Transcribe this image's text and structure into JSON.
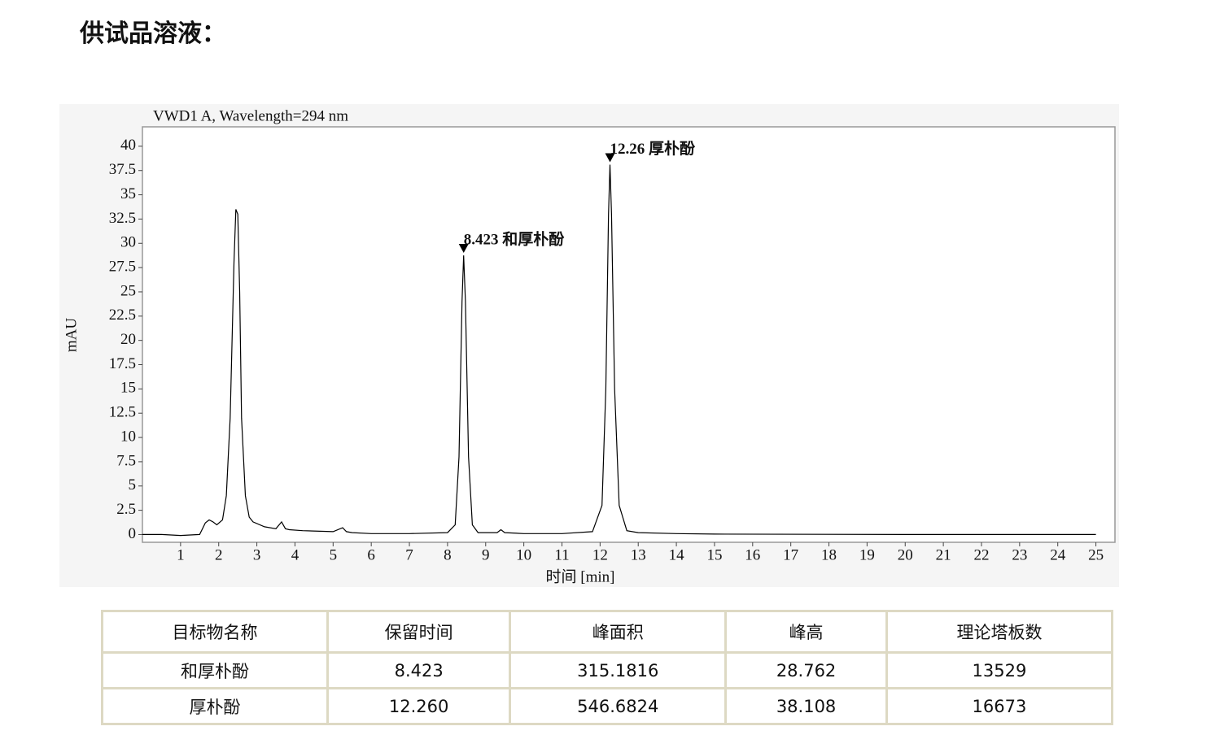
{
  "heading": "供试品溶液：",
  "chart_data": {
    "type": "line",
    "title": "VWD1 A, Wavelength=294 nm",
    "ylabel": "mAU",
    "xlabel": "时间 [min]",
    "xlim": [
      0,
      25.5
    ],
    "ylim": [
      -0.8,
      42
    ],
    "xticks": [
      1,
      2,
      3,
      4,
      5,
      6,
      7,
      8,
      9,
      10,
      11,
      12,
      13,
      14,
      15,
      16,
      17,
      18,
      19,
      20,
      21,
      22,
      23,
      24,
      25
    ],
    "yticks": [
      0,
      2.5,
      5,
      7.5,
      10,
      12.5,
      15,
      17.5,
      20,
      22.5,
      25,
      27.5,
      30,
      32.5,
      35,
      37.5,
      40
    ],
    "x": [
      0,
      0.5,
      1,
      1.5,
      1.65,
      1.75,
      1.85,
      1.95,
      2.1,
      2.2,
      2.3,
      2.4,
      2.45,
      2.5,
      2.55,
      2.6,
      2.7,
      2.8,
      2.9,
      3.2,
      3.5,
      3.65,
      3.75,
      3.85,
      4.2,
      5,
      5.25,
      5.35,
      5.5,
      6,
      7,
      8,
      8.2,
      8.3,
      8.38,
      8.423,
      8.47,
      8.55,
      8.65,
      8.8,
      9.3,
      9.4,
      9.5,
      10,
      11,
      11.8,
      12.05,
      12.15,
      12.22,
      12.26,
      12.3,
      12.38,
      12.5,
      12.7,
      13,
      14,
      15,
      20,
      25
    ],
    "values": [
      0,
      0,
      -0.1,
      0,
      1.2,
      1.5,
      1.3,
      1.0,
      1.5,
      4,
      12,
      28,
      33.5,
      33,
      25,
      12,
      4,
      1.8,
      1.3,
      0.8,
      0.6,
      1.3,
      0.6,
      0.5,
      0.4,
      0.3,
      0.7,
      0.3,
      0.2,
      0.1,
      0.1,
      0.2,
      1,
      8,
      24,
      28.762,
      24,
      8,
      1,
      0.2,
      0.2,
      0.5,
      0.2,
      0.1,
      0.1,
      0.3,
      3,
      15,
      33,
      38.108,
      33,
      15,
      3,
      0.4,
      0.2,
      0.1,
      0.05,
      0,
      0
    ],
    "color": "#000000",
    "annotations": [
      {
        "text": "8.423 和厚朴酚",
        "x": 8.423,
        "y": 28.762
      },
      {
        "text": "12.26 厚朴酚",
        "x": 12.26,
        "y": 38.108
      }
    ]
  },
  "table": {
    "header": [
      "目标物名称",
      "保留时间",
      "峰面积",
      "峰高",
      "理论塔板数"
    ],
    "rows": [
      [
        "和厚朴酚",
        "8.423",
        "315.1816",
        "28.762",
        "13529"
      ],
      [
        "厚朴酚",
        "12.260",
        "546.6824",
        "38.108",
        "16673"
      ]
    ]
  }
}
